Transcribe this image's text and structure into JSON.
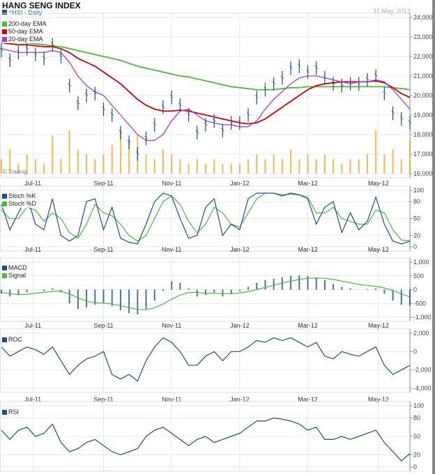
{
  "header": {
    "title": "HANG SENG INDEX",
    "symbol": "^HSI - Daily",
    "date": "31 May, 2012",
    "watermark": "© Trading"
  },
  "colors": {
    "price": "#1f4e87",
    "ema200": "#4cbb3c",
    "ema50": "#d40000",
    "ema20": "#a040d8",
    "volume": "#f5a623",
    "k": "#1f4e87",
    "d": "#4cbb3c",
    "grid": "#e3e9f0"
  },
  "chart_data": [
    {
      "type": "line",
      "panel": "price",
      "title": "HANG SENG INDEX",
      "ylim": [
        16000,
        24000
      ],
      "yticks": [
        "16,000",
        "17,000",
        "18,000",
        "19,000",
        "20,000",
        "21,000",
        "22,000",
        "23,000",
        "24,000"
      ],
      "ytick_values": [
        16000,
        17000,
        18000,
        19000,
        20000,
        21000,
        22000,
        23000,
        24000
      ],
      "xticks": [
        {
          "label": "Jul-11",
          "pos": 3.7
        },
        {
          "label": "Sep-11",
          "pos": 12
        },
        {
          "label": "Nov-11",
          "pos": 20
        },
        {
          "label": "Jan-12",
          "pos": 28
        },
        {
          "label": "Mar-12",
          "pos": 36
        },
        {
          "label": "May-12",
          "pos": 44.3
        }
      ],
      "series": [
        {
          "name": "^HSI",
          "values": [
            22300,
            21800,
            22200,
            22400,
            22100,
            21900,
            22600,
            22000,
            20500,
            19600,
            20000,
            20100,
            19300,
            19000,
            18100,
            17600,
            17000,
            17800,
            18500,
            19400,
            19900,
            19500,
            19000,
            18100,
            18500,
            18700,
            18200,
            18600,
            18600,
            19000,
            19900,
            20300,
            20600,
            20900,
            21400,
            21500,
            21200,
            21400,
            20900,
            20600,
            20500,
            20600,
            20600,
            20800,
            21000,
            20100,
            19100,
            18800,
            18600
          ]
        },
        {
          "name": "200-day EMA",
          "values": [
            22800,
            22800,
            22750,
            22700,
            22650,
            22600,
            22550,
            22500,
            22400,
            22300,
            22200,
            22100,
            22000,
            21900,
            21800,
            21650,
            21500,
            21400,
            21300,
            21200,
            21100,
            21000,
            20950,
            20850,
            20750,
            20650,
            20550,
            20450,
            20400,
            20350,
            20300,
            20300,
            20300,
            20350,
            20400,
            20400,
            20450,
            20450,
            20450,
            20450,
            20450,
            20450,
            20450,
            20450,
            20450,
            20450,
            20400,
            20350,
            20300
          ]
        },
        {
          "name": "50-day EMA",
          "values": [
            22700,
            22650,
            22600,
            22600,
            22550,
            22500,
            22500,
            22400,
            22200,
            21900,
            21700,
            21500,
            21200,
            20900,
            20600,
            20200,
            19800,
            19500,
            19300,
            19200,
            19200,
            19250,
            19200,
            19100,
            19000,
            18900,
            18800,
            18700,
            18600,
            18550,
            18600,
            18800,
            19100,
            19400,
            19700,
            20000,
            20300,
            20500,
            20600,
            20650,
            20700,
            20700,
            20700,
            20700,
            20750,
            20650,
            20400,
            20100,
            19900
          ]
        },
        {
          "name": "20-day EMA",
          "values": [
            22400,
            22300,
            22200,
            22200,
            22200,
            22200,
            22300,
            22200,
            21700,
            21000,
            20500,
            20200,
            20000,
            19500,
            19000,
            18500,
            18000,
            17700,
            17700,
            18000,
            18700,
            19200,
            19300,
            19000,
            18700,
            18600,
            18500,
            18500,
            18400,
            18400,
            18700,
            19300,
            19800,
            20200,
            20600,
            20900,
            21000,
            21000,
            20900,
            20800,
            20700,
            20600,
            20700,
            20700,
            20800,
            20700,
            20300,
            19800,
            19300
          ]
        }
      ],
      "volume": [
        3,
        5,
        2,
        4,
        3,
        2,
        8,
        3,
        9,
        5,
        4,
        3,
        4,
        6,
        9,
        7,
        8,
        4,
        3,
        5,
        4,
        3,
        2,
        3,
        2,
        3,
        2,
        2,
        2,
        3,
        4,
        3,
        4,
        3,
        5,
        3,
        4,
        3,
        4,
        3,
        2,
        3,
        3,
        4,
        9,
        4,
        5,
        3,
        7
      ]
    },
    {
      "type": "line",
      "panel": "stochastic",
      "ylim": [
        0,
        100
      ],
      "yticks": [
        "0",
        "20",
        "50",
        "80",
        "100"
      ],
      "ytick_values": [
        0,
        20,
        50,
        80,
        100
      ],
      "series": [
        {
          "name": "Stoch %K",
          "values": [
            75,
            30,
            60,
            90,
            40,
            30,
            85,
            20,
            10,
            20,
            80,
            85,
            30,
            70,
            15,
            8,
            5,
            40,
            80,
            95,
            90,
            50,
            15,
            20,
            70,
            85,
            20,
            40,
            30,
            85,
            95,
            95,
            95,
            90,
            95,
            92,
            85,
            40,
            70,
            80,
            25,
            60,
            30,
            45,
            88,
            40,
            10,
            5,
            10
          ]
        },
        {
          "name": "Stoch %D",
          "values": [
            65,
            50,
            50,
            70,
            65,
            45,
            60,
            50,
            25,
            15,
            40,
            75,
            60,
            55,
            40,
            20,
            10,
            20,
            50,
            80,
            90,
            75,
            45,
            25,
            40,
            70,
            60,
            40,
            35,
            60,
            85,
            95,
            95,
            92,
            93,
            92,
            88,
            60,
            60,
            70,
            50,
            45,
            40,
            40,
            65,
            60,
            30,
            12,
            10
          ]
        }
      ]
    },
    {
      "type": "line",
      "panel": "macd",
      "ylim": [
        -1000,
        1000
      ],
      "yticks": [
        "-1,000",
        "-500",
        "0",
        "500",
        "1,000"
      ],
      "ytick_values": [
        -1000,
        -500,
        0,
        500,
        1000
      ],
      "series": [
        {
          "name": "MACD",
          "values": [
            -150,
            -250,
            -200,
            -100,
            0,
            -50,
            50,
            -100,
            -500,
            -700,
            -650,
            -550,
            -500,
            -600,
            -750,
            -850,
            -900,
            -700,
            -400,
            -50,
            300,
            250,
            50,
            -250,
            -200,
            -100,
            -250,
            -150,
            -50,
            100,
            250,
            350,
            400,
            450,
            500,
            520,
            500,
            450,
            350,
            200,
            100,
            50,
            0,
            20,
            50,
            -150,
            -400,
            -550,
            -580
          ]
        },
        {
          "name": "Signal",
          "values": [
            -100,
            -150,
            -180,
            -170,
            -130,
            -100,
            -60,
            -60,
            -150,
            -300,
            -420,
            -480,
            -490,
            -520,
            -580,
            -650,
            -720,
            -730,
            -660,
            -520,
            -350,
            -200,
            -100,
            -100,
            -130,
            -130,
            -150,
            -150,
            -120,
            -70,
            0,
            80,
            160,
            240,
            310,
            370,
            410,
            420,
            410,
            370,
            310,
            250,
            190,
            150,
            120,
            60,
            -30,
            -150,
            -270
          ]
        }
      ]
    },
    {
      "type": "line",
      "panel": "roc",
      "ylim": [
        -4000,
        2000
      ],
      "yticks": [
        "-4,000",
        "-2,000",
        "0",
        "2,000"
      ],
      "ytick_values": [
        -4000,
        -2000,
        0,
        2000
      ],
      "series": [
        {
          "name": "ROC",
          "values": [
            500,
            -500,
            0,
            500,
            200,
            -300,
            500,
            -1000,
            -2500,
            -1500,
            -800,
            -500,
            0,
            -2500,
            -3000,
            -2500,
            -3200,
            -1000,
            500,
            1500,
            1000,
            0,
            -1500,
            -1500,
            -500,
            0,
            -1000,
            0,
            0,
            500,
            1200,
            1000,
            1500,
            1200,
            1500,
            1000,
            500,
            1000,
            -500,
            -800,
            0,
            -300,
            -500,
            0,
            500,
            -1500,
            -2500,
            -2000,
            -1500
          ]
        }
      ]
    },
    {
      "type": "line",
      "panel": "rsi",
      "ylim": [
        0,
        100
      ],
      "yticks": [
        "0",
        "20",
        "50",
        "80",
        "100"
      ],
      "ytick_values": [
        0,
        20,
        50,
        80,
        100
      ],
      "series": [
        {
          "name": "RSI",
          "values": [
            60,
            45,
            60,
            65,
            50,
            55,
            70,
            40,
            25,
            30,
            40,
            45,
            35,
            25,
            20,
            25,
            30,
            50,
            60,
            65,
            55,
            45,
            35,
            45,
            50,
            40,
            45,
            50,
            55,
            65,
            75,
            75,
            80,
            78,
            75,
            70,
            60,
            65,
            45,
            45,
            50,
            45,
            50,
            55,
            60,
            40,
            25,
            10,
            22
          ]
        }
      ]
    }
  ]
}
